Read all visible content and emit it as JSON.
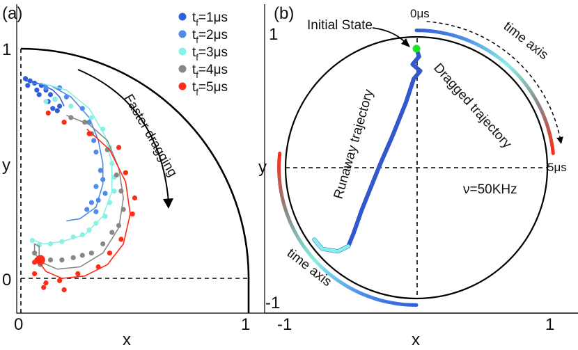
{
  "chart_data": [
    {
      "panel_label": "(a)",
      "type": "scatter",
      "xlabel": "x",
      "ylabel": "y",
      "xlim": [
        -0.03,
        1.0
      ],
      "ylim": [
        -0.13,
        1.1
      ],
      "x_tick_labels": [
        "0",
        "1"
      ],
      "y_tick_labels": [
        "0",
        "1"
      ],
      "unit_circle": true,
      "legend": {
        "placement": "top-right",
        "entries": [
          {
            "main": "t",
            "sub": "f",
            "rest": "=1μs",
            "color": "#2e5fd6"
          },
          {
            "main": "t",
            "sub": "f",
            "rest": "=2μs",
            "color": "#4f8be8"
          },
          {
            "main": "t",
            "sub": "f",
            "rest": "=3μs",
            "color": "#86f1e6"
          },
          {
            "main": "t",
            "sub": "f",
            "rest": "=4μs",
            "color": "#878787"
          },
          {
            "main": "t",
            "sub": "f",
            "rest": "=5μs",
            "color": "#ff2a17"
          }
        ]
      },
      "annotation": "Faster dragging",
      "series": [
        {
          "name": "tf=1μs",
          "color": "#2e5fd6",
          "curve": [
            [
              0.02,
              0.86
            ],
            [
              0.06,
              0.855
            ],
            [
              0.1,
              0.84
            ],
            [
              0.14,
              0.82
            ],
            [
              0.17,
              0.79
            ],
            [
              0.19,
              0.75
            ]
          ],
          "points": [
            [
              0.02,
              0.87
            ],
            [
              0.04,
              0.86
            ],
            [
              0.03,
              0.84
            ],
            [
              0.06,
              0.85
            ],
            [
              0.07,
              0.82
            ],
            [
              0.09,
              0.84
            ],
            [
              0.08,
              0.8
            ],
            [
              0.11,
              0.82
            ],
            [
              0.13,
              0.8
            ],
            [
              0.12,
              0.77
            ],
            [
              0.15,
              0.78
            ],
            [
              0.17,
              0.75
            ],
            [
              0.16,
              0.73
            ],
            [
              0.14,
              0.74
            ]
          ]
        },
        {
          "name": "tf=2μs",
          "color": "#4f8be8",
          "curve": [
            [
              0.05,
              0.85
            ],
            [
              0.13,
              0.84
            ],
            [
              0.22,
              0.79
            ],
            [
              0.3,
              0.7
            ],
            [
              0.34,
              0.6
            ],
            [
              0.36,
              0.5
            ],
            [
              0.36,
              0.41
            ],
            [
              0.33,
              0.31
            ],
            [
              0.26,
              0.26
            ],
            [
              0.2,
              0.25
            ]
          ],
          "points": [
            [
              0.11,
              0.83
            ],
            [
              0.17,
              0.83
            ],
            [
              0.2,
              0.79
            ],
            [
              0.27,
              0.74
            ],
            [
              0.3,
              0.68
            ],
            [
              0.32,
              0.6
            ],
            [
              0.33,
              0.55
            ],
            [
              0.35,
              0.47
            ],
            [
              0.36,
              0.43
            ],
            [
              0.33,
              0.4
            ],
            [
              0.37,
              0.37
            ],
            [
              0.34,
              0.34
            ],
            [
              0.31,
              0.33
            ],
            [
              0.29,
              0.3
            ],
            [
              0.33,
              0.29
            ]
          ]
        },
        {
          "name": "tf=3μs",
          "color": "#86f1e6",
          "curve": [
            [
              0.09,
              0.85
            ],
            [
              0.2,
              0.82
            ],
            [
              0.3,
              0.74
            ],
            [
              0.37,
              0.62
            ],
            [
              0.4,
              0.5
            ],
            [
              0.4,
              0.38
            ],
            [
              0.36,
              0.27
            ],
            [
              0.28,
              0.19
            ],
            [
              0.18,
              0.16
            ],
            [
              0.1,
              0.15
            ],
            [
              0.06,
              0.165
            ]
          ],
          "points": [
            [
              0.11,
              0.77
            ],
            [
              0.15,
              0.78
            ],
            [
              0.22,
              0.75
            ],
            [
              0.31,
              0.7
            ],
            [
              0.36,
              0.65
            ],
            [
              0.39,
              0.57
            ],
            [
              0.4,
              0.5
            ],
            [
              0.41,
              0.44
            ],
            [
              0.41,
              0.38
            ],
            [
              0.39,
              0.33
            ],
            [
              0.37,
              0.27
            ],
            [
              0.33,
              0.24
            ],
            [
              0.3,
              0.21
            ],
            [
              0.27,
              0.19
            ],
            [
              0.23,
              0.18
            ],
            [
              0.18,
              0.16
            ],
            [
              0.13,
              0.15
            ],
            [
              0.08,
              0.145
            ],
            [
              0.05,
              0.165
            ]
          ]
        },
        {
          "name": "tf=4μs",
          "color": "#878787",
          "curve": [
            [
              0.2,
              0.71
            ],
            [
              0.3,
              0.67
            ],
            [
              0.38,
              0.6
            ],
            [
              0.43,
              0.48
            ],
            [
              0.45,
              0.35
            ],
            [
              0.43,
              0.22
            ],
            [
              0.36,
              0.11
            ],
            [
              0.26,
              0.05
            ],
            [
              0.16,
              0.04
            ],
            [
              0.09,
              0.07
            ],
            [
              0.06,
              0.11
            ],
            [
              0.06,
              0.15
            ],
            [
              0.08,
              0.14
            ],
            [
              0.08,
              0.09
            ],
            [
              0.075,
              0.07
            ]
          ],
          "points": [
            [
              0.22,
              0.7
            ],
            [
              0.28,
              0.68
            ],
            [
              0.31,
              0.63
            ],
            [
              0.38,
              0.56
            ],
            [
              0.42,
              0.45
            ],
            [
              0.44,
              0.38
            ],
            [
              0.45,
              0.3
            ],
            [
              0.43,
              0.23
            ],
            [
              0.4,
              0.2
            ],
            [
              0.36,
              0.15
            ],
            [
              0.31,
              0.11
            ],
            [
              0.27,
              0.1
            ],
            [
              0.23,
              0.09
            ],
            [
              0.18,
              0.08
            ],
            [
              0.13,
              0.08
            ],
            [
              0.09,
              0.09
            ],
            [
              0.06,
              0.11
            ],
            [
              0.085,
              0.06
            ]
          ]
        },
        {
          "name": "tf=5μs",
          "color": "#ff2a17",
          "curve": [
            [
              0.29,
              0.65
            ],
            [
              0.39,
              0.56
            ],
            [
              0.46,
              0.42
            ],
            [
              0.48,
              0.28
            ],
            [
              0.45,
              0.15
            ],
            [
              0.38,
              0.06
            ],
            [
              0.28,
              0.01
            ],
            [
              0.18,
              0.0
            ],
            [
              0.11,
              0.03
            ],
            [
              0.08,
              0.07
            ]
          ],
          "points": [
            [
              0.12,
              0.72
            ],
            [
              0.19,
              0.68
            ],
            [
              0.3,
              0.63
            ],
            [
              0.43,
              0.57
            ],
            [
              0.46,
              0.46
            ],
            [
              0.5,
              0.35
            ],
            [
              0.49,
              0.28
            ],
            [
              0.44,
              0.17
            ],
            [
              0.39,
              0.11
            ],
            [
              0.34,
              0.05
            ],
            [
              0.25,
              0.02
            ],
            [
              0.17,
              -0.01
            ],
            [
              0.11,
              -0.02
            ],
            [
              0.06,
              0.02
            ],
            [
              0.1,
              -0.04
            ],
            [
              0.19,
              -0.05
            ],
            [
              0.06,
              0.07
            ],
            [
              0.07,
              0.08
            ]
          ]
        }
      ]
    },
    {
      "panel_label": "(b)",
      "type": "line",
      "xlabel": "x",
      "ylabel": "y",
      "xlim": [
        -1.1,
        1.1
      ],
      "ylim": [
        -1.1,
        1.1
      ],
      "x_tick_labels": [
        "-1",
        "1"
      ],
      "y_tick_labels": [
        "1",
        "-1"
      ],
      "unit_circle": true,
      "annotations": {
        "initial_state": "Initial State",
        "runaway": "Runaway trajectory",
        "dragged": "Dragged trajectory",
        "time_axis_top": "time axis",
        "time_axis_bottom": "time axis",
        "t0": "0μs",
        "t5": "5μs",
        "frequency": "ν=50KHz"
      },
      "initial_state_point": [
        0.0,
        0.91
      ],
      "dragged_trajectory": {
        "radius": 1.05,
        "angle_start_deg": 90,
        "angle_end_deg": 6,
        "color_stops": [
          "#2e5fd6",
          "#4f8be8",
          "#86f1e6",
          "#878787",
          "#ff2a17"
        ]
      },
      "time_axis_arrow": {
        "radius": 1.12,
        "angle_start_deg": 86,
        "angle_end_deg": 12
      },
      "bottom_trajectory": {
        "radius": 1.05,
        "angle_start_deg": 270,
        "angle_end_deg": 174,
        "color_stops": [
          "#2e5fd6",
          "#4f8be8",
          "#86f1e6",
          "#878787",
          "#ff2a17"
        ]
      },
      "runaway_trajectory": {
        "color": "#3258cc",
        "path": [
          [
            0.0,
            0.91
          ],
          [
            0.02,
            0.85
          ],
          [
            -0.03,
            0.79
          ],
          [
            0.03,
            0.74
          ],
          [
            -0.02,
            0.68
          ],
          [
            -0.08,
            0.5
          ],
          [
            -0.18,
            0.25
          ],
          [
            -0.28,
            0.02
          ],
          [
            -0.36,
            -0.18
          ],
          [
            -0.42,
            -0.33
          ],
          [
            -0.48,
            -0.5
          ],
          [
            -0.52,
            -0.6
          ],
          [
            -0.6,
            -0.64
          ],
          [
            -0.72,
            -0.62
          ],
          [
            -0.78,
            -0.55
          ]
        ]
      }
    }
  ]
}
